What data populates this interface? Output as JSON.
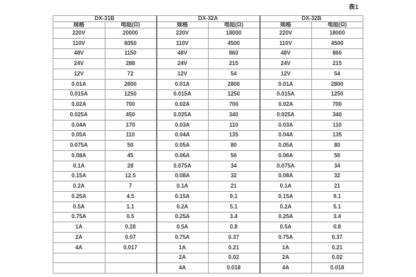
{
  "caption": "表1",
  "table": {
    "groups": [
      {
        "name": "DX-31B",
        "col_headers": [
          "规格",
          "电阻(Ω)"
        ]
      },
      {
        "name": "DX-32A",
        "col_headers": [
          "规格",
          "电阻(Ω)"
        ]
      },
      {
        "name": "DX-32B",
        "col_headers": [
          "规格",
          "电阻(Ω)"
        ]
      }
    ],
    "rows": [
      [
        "220V",
        "20000",
        "220V",
        "18000",
        "220V",
        "18000"
      ],
      [
        "110V",
        "6050",
        "110V",
        "4500",
        "110V",
        "4500"
      ],
      [
        "48V",
        "1150",
        "48V",
        "860",
        "48V",
        "860"
      ],
      [
        "24V",
        "288",
        "24V",
        "215",
        "24V",
        "215"
      ],
      [
        "12V",
        "72",
        "12V",
        "54",
        "12V",
        "54"
      ],
      [
        "0.01A",
        "2800",
        "0.01A",
        "2800",
        "0.01A",
        "2800"
      ],
      [
        "0.015A",
        "1250",
        "0.015A",
        "1250",
        "0.015A",
        "1250"
      ],
      [
        "0.02A",
        "700",
        "0.02A",
        "700",
        "0.02A",
        "700"
      ],
      [
        "0.025A",
        "450",
        "0.025A",
        "340",
        "0.025A",
        "340"
      ],
      [
        "0.04A",
        "170",
        "0.03A",
        "110",
        "0.03A",
        "110"
      ],
      [
        "0.05A",
        "110",
        "0.04A",
        "135",
        "0.04A",
        "135"
      ],
      [
        "0.075A",
        "50",
        "0.05A",
        "80",
        "0.05A",
        "80"
      ],
      [
        "0.08A",
        "45",
        "0.06A",
        "56",
        "0.06A",
        "56"
      ],
      [
        "0.1A",
        "28",
        "0.075A",
        "34",
        "0.075A",
        "34"
      ],
      [
        "0.15A",
        "12.5",
        "0.08A",
        "32",
        "0.08A",
        "32"
      ],
      [
        "0.2A",
        "7",
        "0.1A",
        "21",
        "0.1A",
        "21"
      ],
      [
        "0.25A",
        "4.5",
        "0.15A",
        "9.1",
        "0.15A",
        "9.1"
      ],
      [
        "0.5A",
        "1.1",
        "0.2A",
        "5.1",
        "0.2A",
        "5.1"
      ],
      [
        "0.75A",
        "0.5",
        "0.25A",
        "3.4",
        "0.25A",
        "3.4"
      ],
      [
        "1A",
        "0.28",
        "0.5A",
        "0.8",
        "0.5A",
        "0.8"
      ],
      [
        "2A",
        "0.07",
        "0.75A",
        "0.37",
        "0.75A",
        "0.37"
      ],
      [
        "4A",
        "0.017",
        "1A",
        "0.21",
        "1A",
        "0.21"
      ],
      [
        "",
        "",
        "2A",
        "0.02",
        "2A",
        "0.02"
      ],
      [
        "",
        "",
        "4A",
        "0.018",
        "4A",
        "0.018"
      ]
    ]
  }
}
